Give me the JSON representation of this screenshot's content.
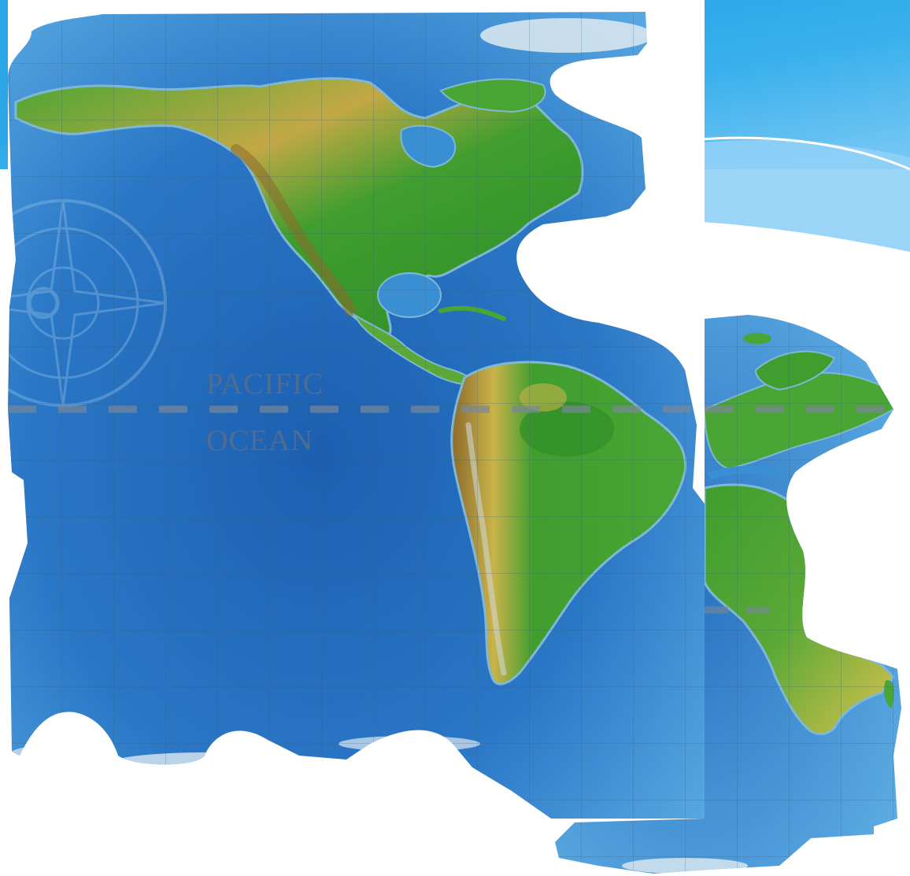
{
  "map": {
    "labels": {
      "pacific_line1": "PACIFIC",
      "pacific_line2": "OCEAN"
    }
  },
  "theme": {
    "header_blue": "#2aa5e6",
    "header_blue_light": "#8fd0f7",
    "ocean_deep": "#1d62b3",
    "ocean_mid": "#3a8fd3",
    "ocean_shallow": "#5fb0e6",
    "land_green": "#3f9e2e",
    "land_yellow": "#c9b34a",
    "land_brown": "#8c6a2b",
    "ice": "#dfeaf0",
    "grid": "#3b5f88"
  }
}
